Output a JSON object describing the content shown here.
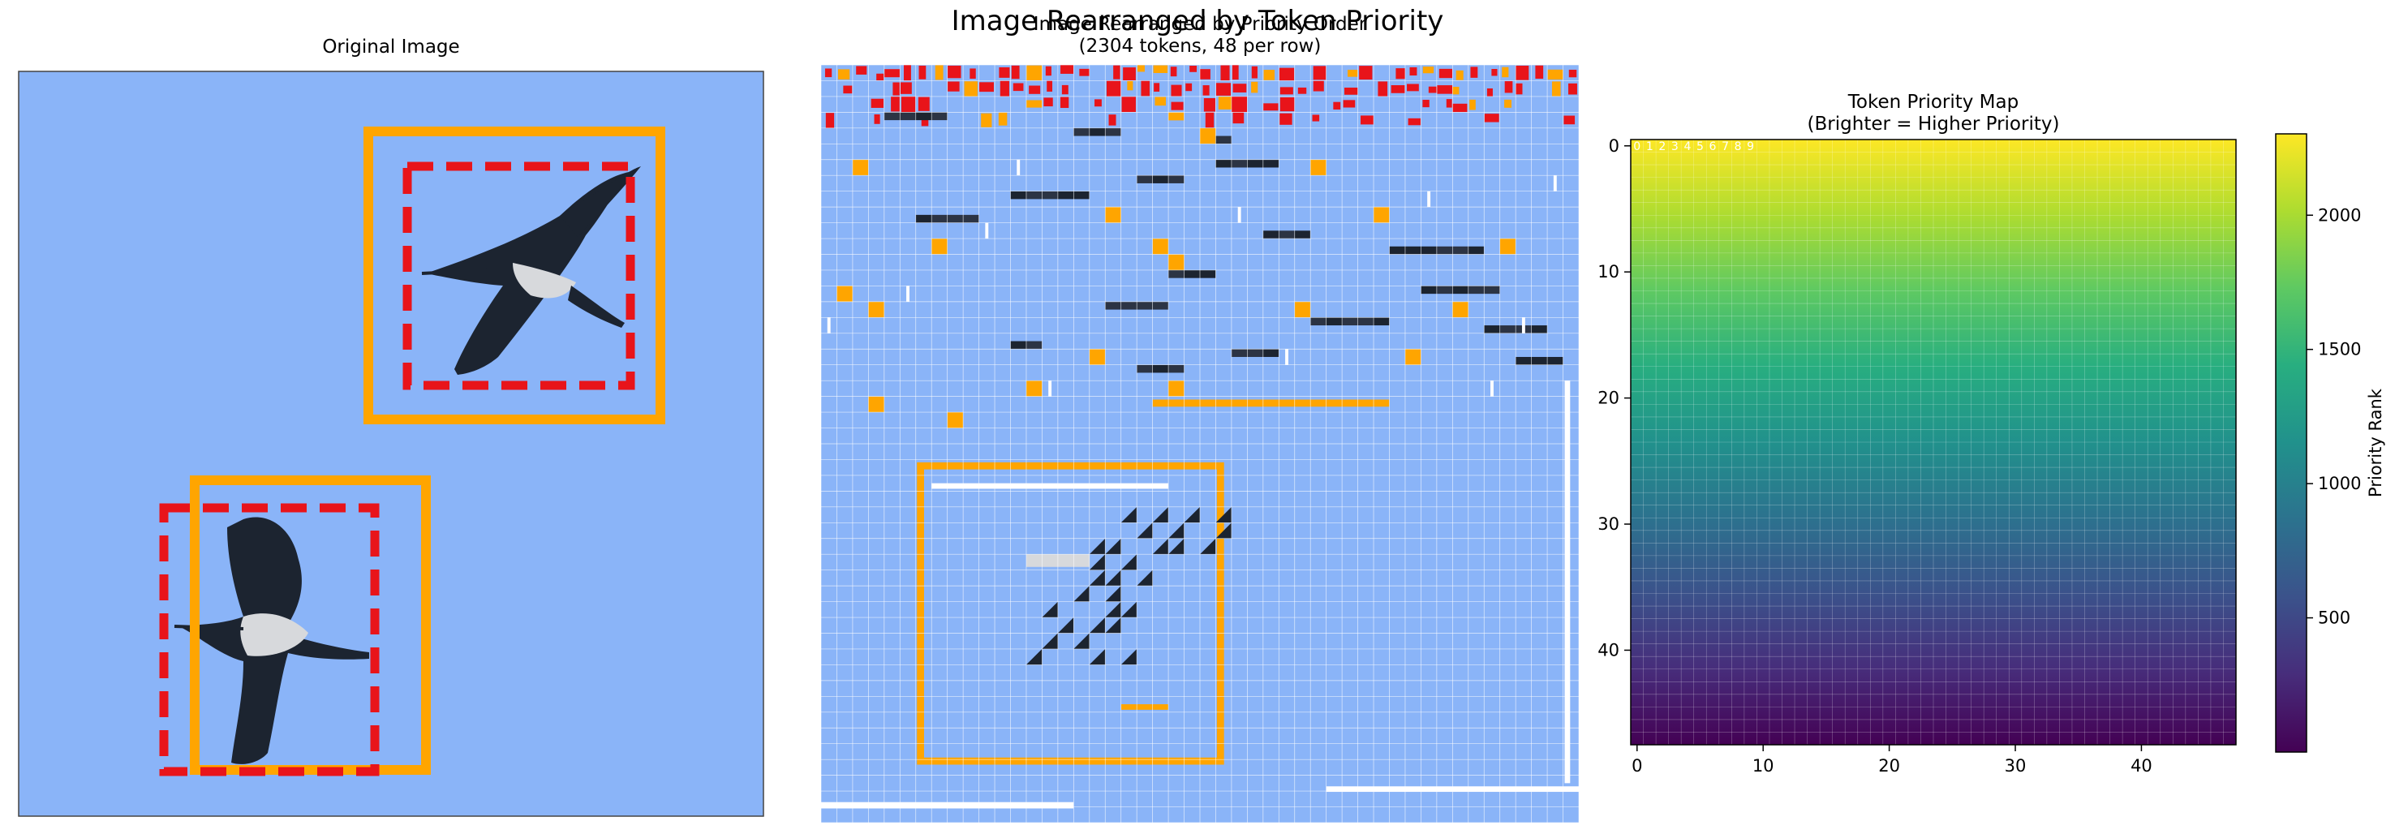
{
  "suptitle": "Image Rearranged by Token Priority",
  "panels": {
    "original": {
      "title": "Original Image"
    },
    "rearranged": {
      "title_line1": "Image Rearranged by Priority Order",
      "title_line2": "(2304 tokens, 48 per row)"
    },
    "priority_map": {
      "title_line1": "Token Priority Map",
      "title_line2": "(Brighter = Higher Priority)"
    }
  },
  "colors": {
    "sky": "#8ab4f8",
    "solid_box": "#ffa500",
    "dashed_box": "#e8141a",
    "bird_dark": "#1c2430",
    "bird_light": "#d7d9dc"
  },
  "chart_data": [
    {
      "type": "heatmap",
      "title": "Token Priority Map\n(Brighter = Higher Priority)",
      "grid": [
        48,
        48
      ],
      "xticks": [
        0,
        10,
        20,
        30,
        40
      ],
      "yticks": [
        0,
        10,
        20,
        30,
        40
      ],
      "xlim": [
        -0.5,
        47.5
      ],
      "ylim": [
        47.5,
        -0.5
      ],
      "value_rule": "rank increases toward top rows (row 0 brightest)",
      "top_row_labels": [
        "0",
        "1",
        "2",
        "3",
        "4",
        "5",
        "6",
        "7",
        "8",
        "9"
      ],
      "colorbar": {
        "label": "Priority Rank",
        "ticks": [
          500,
          1000,
          1500,
          2000
        ],
        "range": [
          0,
          2303
        ],
        "colormap": "viridis"
      }
    }
  ]
}
